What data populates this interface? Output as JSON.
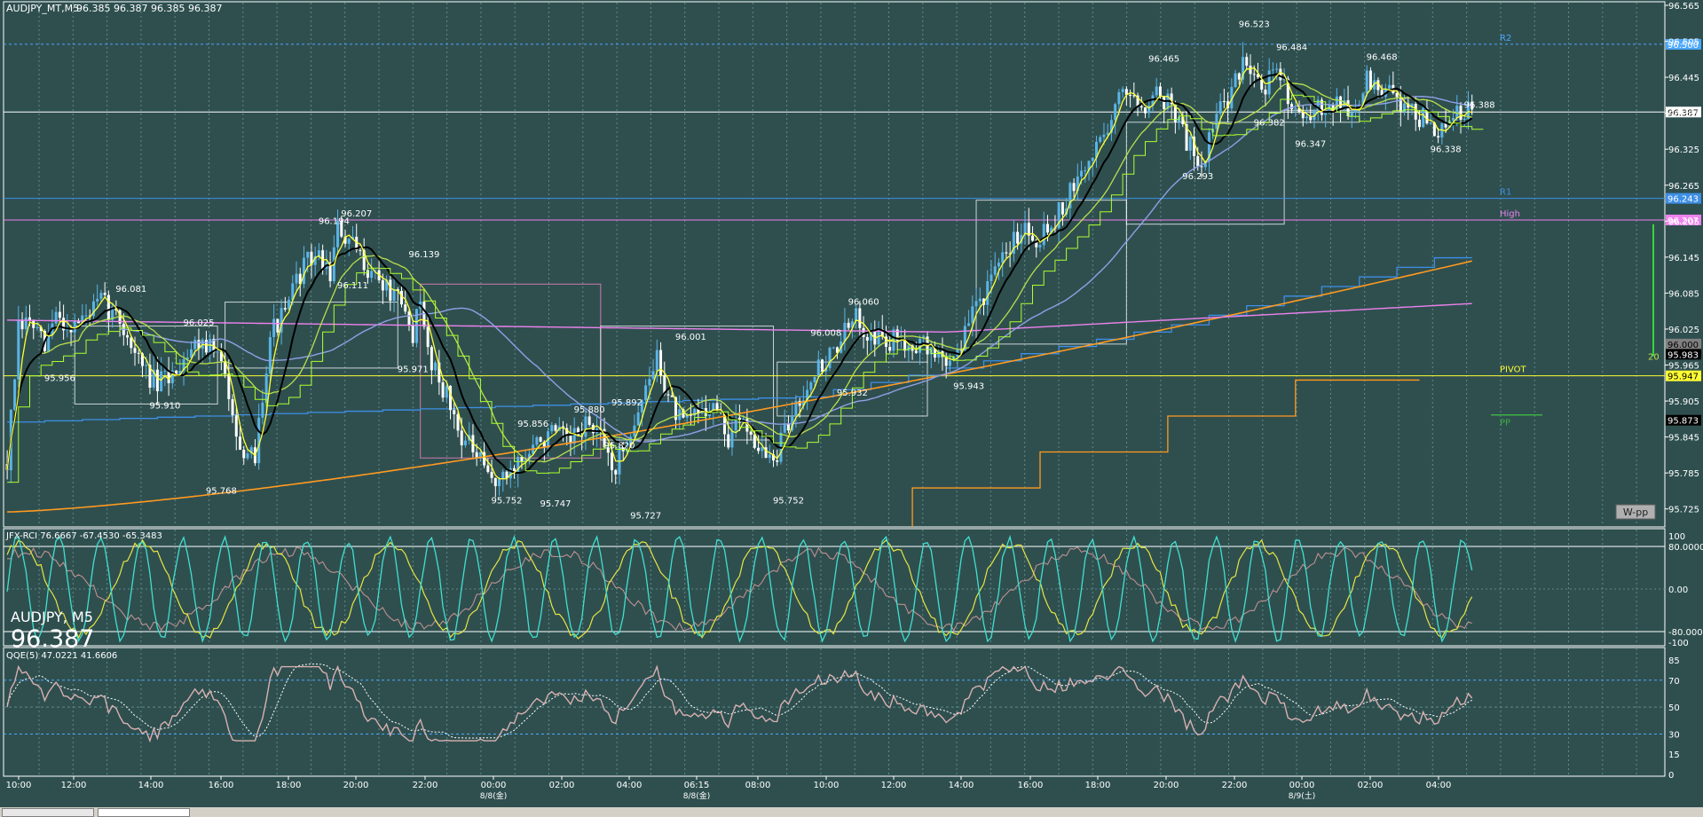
{
  "header": {
    "symbol_tf": "AUDJPY_MT,M5",
    "ohlc": "96.385 96.387 96.385 96.387",
    "symbol_big": "AUDJPY, M5",
    "price_big": "96.387",
    "weekly_pivot_button": "W-pp"
  },
  "colors": {
    "background": "#2f4f4f",
    "grid": "#5d8a8a",
    "bull_candle": "#5ab4e6",
    "bear_candle": "#ffffff",
    "ma_fast": "#ffff33",
    "ma_mid": "#000000",
    "ma_slow": "#b8e04a",
    "ma_steps": "#adff2f",
    "ma_long": "#8fa0e6",
    "ma_very_long": "#ff9a1f",
    "ma_pink": "#ee82ee",
    "step_blue": "#3d8fe6",
    "step_orange": "#ff9a1f",
    "rci_fast": "#40e0d0",
    "rci_mid": "#e6e640",
    "rci_slow": "#c09090",
    "qqe_main": "#d8b0b0",
    "qqe_signal": "#ffffff"
  },
  "chart_data": [
    {
      "type": "candlestick",
      "title": "AUDJPY_MT,M5",
      "ylim": [
        95.695,
        96.565
      ],
      "yticks": [
        "96.565",
        "96.505",
        "96.445",
        "96.385",
        "96.325",
        "96.265",
        "96.205",
        "96.145",
        "96.085",
        "96.025",
        "95.965",
        "95.905",
        "95.845",
        "95.785",
        "95.725"
      ],
      "x_tick_labels": [
        "10:00",
        "12:00",
        "14:00",
        "16:00",
        "18:00",
        "20:00",
        "22:00",
        "00:00",
        "02:00",
        "04:00",
        "06:15",
        "08:00",
        "10:00",
        "12:00",
        "14:00",
        "16:00",
        "18:00",
        "20:00",
        "22:00",
        "00:00",
        "02:00",
        "04:00"
      ],
      "date_labels": [
        {
          "after_tick": 7,
          "text": "8/8(金)"
        },
        {
          "after_tick": 10,
          "text": "8/8(金)"
        },
        {
          "after_tick": 19,
          "text": "8/9(土)"
        }
      ],
      "close_path": [
        [
          0,
          95.8
        ],
        [
          3,
          96.02
        ],
        [
          6,
          96.04
        ],
        [
          10,
          95.99
        ],
        [
          13,
          96.05
        ],
        [
          16,
          96.03
        ],
        [
          20,
          96.04
        ],
        [
          25,
          96.07
        ],
        [
          30,
          96.04
        ],
        [
          36,
          95.96
        ],
        [
          40,
          95.93
        ],
        [
          44,
          95.95
        ],
        [
          48,
          95.99
        ],
        [
          52,
          96.01
        ],
        [
          56,
          95.98
        ],
        [
          60,
          95.9
        ],
        [
          63,
          95.79
        ],
        [
          66,
          95.82
        ],
        [
          70,
          96.02
        ],
        [
          74,
          96.05
        ],
        [
          78,
          96.12
        ],
        [
          82,
          96.15
        ],
        [
          86,
          96.12
        ],
        [
          88,
          96.19
        ],
        [
          92,
          96.16
        ],
        [
          96,
          96.13
        ],
        [
          100,
          96.1
        ],
        [
          104,
          96.07
        ],
        [
          108,
          96.02
        ],
        [
          110,
          96.06
        ],
        [
          112,
          95.99
        ],
        [
          116,
          95.93
        ],
        [
          120,
          95.86
        ],
        [
          124,
          95.82
        ],
        [
          128,
          95.78
        ],
        [
          132,
          95.77
        ],
        [
          135,
          95.8
        ],
        [
          138,
          95.81
        ],
        [
          142,
          95.84
        ],
        [
          146,
          95.85
        ],
        [
          150,
          95.83
        ],
        [
          154,
          95.87
        ],
        [
          158,
          95.84
        ],
        [
          162,
          95.79
        ],
        [
          166,
          95.86
        ],
        [
          170,
          95.92
        ],
        [
          173,
          95.98
        ],
        [
          176,
          95.91
        ],
        [
          180,
          95.86
        ],
        [
          184,
          95.89
        ],
        [
          188,
          95.9
        ],
        [
          192,
          95.84
        ],
        [
          196,
          95.88
        ],
        [
          200,
          95.83
        ],
        [
          204,
          95.8
        ],
        [
          207,
          95.85
        ],
        [
          210,
          95.9
        ],
        [
          214,
          95.95
        ],
        [
          218,
          95.97
        ],
        [
          222,
          96.01
        ],
        [
          226,
          96.04
        ],
        [
          230,
          96.02
        ],
        [
          234,
          96.0
        ],
        [
          238,
          96.01
        ],
        [
          242,
          96.0
        ],
        [
          246,
          95.99
        ],
        [
          250,
          95.97
        ],
        [
          254,
          96.0
        ],
        [
          258,
          96.07
        ],
        [
          262,
          96.1
        ],
        [
          266,
          96.15
        ],
        [
          270,
          96.2
        ],
        [
          274,
          96.18
        ],
        [
          278,
          96.2
        ],
        [
          282,
          96.24
        ],
        [
          286,
          96.28
        ],
        [
          290,
          96.33
        ],
        [
          294,
          96.38
        ],
        [
          298,
          96.43
        ],
        [
          302,
          96.4
        ],
        [
          306,
          96.42
        ],
        [
          310,
          96.4
        ],
        [
          314,
          96.34
        ],
        [
          318,
          96.3
        ],
        [
          322,
          96.38
        ],
        [
          326,
          96.42
        ],
        [
          330,
          96.48
        ],
        [
          334,
          96.43
        ],
        [
          338,
          96.45
        ],
        [
          342,
          96.41
        ],
        [
          346,
          96.36
        ],
        [
          350,
          96.4
        ],
        [
          354,
          96.41
        ],
        [
          358,
          96.38
        ],
        [
          362,
          96.44
        ],
        [
          366,
          96.42
        ],
        [
          370,
          96.41
        ],
        [
          374,
          96.39
        ],
        [
          378,
          96.37
        ],
        [
          382,
          96.35
        ],
        [
          386,
          96.38
        ],
        [
          390,
          96.387
        ]
      ],
      "price_labels": [
        {
          "bar": 33,
          "price": 96.081,
          "text": "96.081"
        },
        {
          "bar": 14,
          "price": 95.956,
          "text": "95.956"
        },
        {
          "bar": 51,
          "price": 96.025,
          "text": "96.025"
        },
        {
          "bar": 42,
          "price": 95.91,
          "text": "95.910"
        },
        {
          "bar": 57,
          "price": 95.768,
          "text": "95.768"
        },
        {
          "bar": 87,
          "price": 96.194,
          "text": "96.194"
        },
        {
          "bar": 93,
          "price": 96.207,
          "text": "96.207"
        },
        {
          "bar": 92,
          "price": 96.111,
          "text": "96.111"
        },
        {
          "bar": 111,
          "price": 96.139,
          "text": "96.139"
        },
        {
          "bar": 108,
          "price": 95.971,
          "text": "95.971"
        },
        {
          "bar": 140,
          "price": 95.856,
          "text": "95.856"
        },
        {
          "bar": 133,
          "price": 95.752,
          "text": "95.752"
        },
        {
          "bar": 146,
          "price": 95.747,
          "text": "95.747"
        },
        {
          "bar": 155,
          "price": 95.88,
          "text": "95.880"
        },
        {
          "bar": 165,
          "price": 95.892,
          "text": "95.892"
        },
        {
          "bar": 163,
          "price": 95.82,
          "text": "95.820"
        },
        {
          "bar": 170,
          "price": 95.727,
          "text": "95.727"
        },
        {
          "bar": 182,
          "price": 96.001,
          "text": "96.001"
        },
        {
          "bar": 208,
          "price": 95.752,
          "text": "95.752"
        },
        {
          "bar": 228,
          "price": 96.06,
          "text": "96.060"
        },
        {
          "bar": 218,
          "price": 96.008,
          "text": "96.008"
        },
        {
          "bar": 225,
          "price": 95.932,
          "text": "95.932"
        },
        {
          "bar": 256,
          "price": 95.943,
          "text": "95.943"
        },
        {
          "bar": 308,
          "price": 96.465,
          "text": "96.465"
        },
        {
          "bar": 317,
          "price": 96.293,
          "text": "96.293"
        },
        {
          "bar": 332,
          "price": 96.523,
          "text": "96.523"
        },
        {
          "bar": 342,
          "price": 96.484,
          "text": "96.484"
        },
        {
          "bar": 336,
          "price": 96.382,
          "text": "96.382"
        },
        {
          "bar": 347,
          "price": 96.347,
          "text": "96.347"
        },
        {
          "bar": 366,
          "price": 96.468,
          "text": "96.468"
        },
        {
          "bar": 383,
          "price": 96.338,
          "text": "96.338"
        },
        {
          "bar": 392,
          "price": 96.388,
          "text": "96.388"
        }
      ],
      "levels": [
        {
          "name": "R2",
          "price": 96.5,
          "color": "#4aa8ff",
          "tag": "96.500",
          "style": "dash"
        },
        {
          "name": "",
          "price": 96.387,
          "color": "#ffffff",
          "tag": "96.387",
          "style": "solid"
        },
        {
          "name": "R1",
          "price": 96.243,
          "color": "#3d8fe6",
          "tag": "96.243",
          "style": "solid"
        },
        {
          "name": "High",
          "price": 96.207,
          "color": "#ee82ee",
          "tag": "96.207",
          "style": "solid"
        },
        {
          "name": "",
          "price": 96.0,
          "color": "#808080",
          "tag": "96.000",
          "style": "none"
        },
        {
          "name": "",
          "price": 95.983,
          "color": "#808080",
          "tag": "95.983",
          "style": "none"
        },
        {
          "name": "PIVOT",
          "price": 95.947,
          "color": "#ffff33",
          "tag": "95.947",
          "style": "solid"
        },
        {
          "name": "PP",
          "price": 95.873,
          "color": "#3cb043",
          "tag": "95.873",
          "style": "short"
        }
      ],
      "tag_colors": [
        "#4aa8ff",
        "#ffffff",
        "#3d8fe6",
        "#ee82ee",
        "#808080",
        "#000000",
        "#ffff33",
        "#000000"
      ],
      "range_marker_value": "20",
      "weekly_steps_price": [
        95.7,
        95.76,
        95.82,
        95.88,
        95.94
      ]
    },
    {
      "type": "line",
      "title": "JFX-RCI 76.6667 -67.4530 -65.3483",
      "ylim": [
        -100,
        100
      ],
      "yticks": [
        "100",
        "80.0000",
        "0.00",
        "-80.0000",
        "-100"
      ],
      "series_names": []
    },
    {
      "type": "line",
      "title": "QQE(5) 47.0221 41.6606",
      "ylim": [
        0,
        85
      ],
      "yticks": [
        "85",
        "70",
        "50",
        "30",
        "15",
        "0"
      ],
      "series_names": []
    }
  ]
}
